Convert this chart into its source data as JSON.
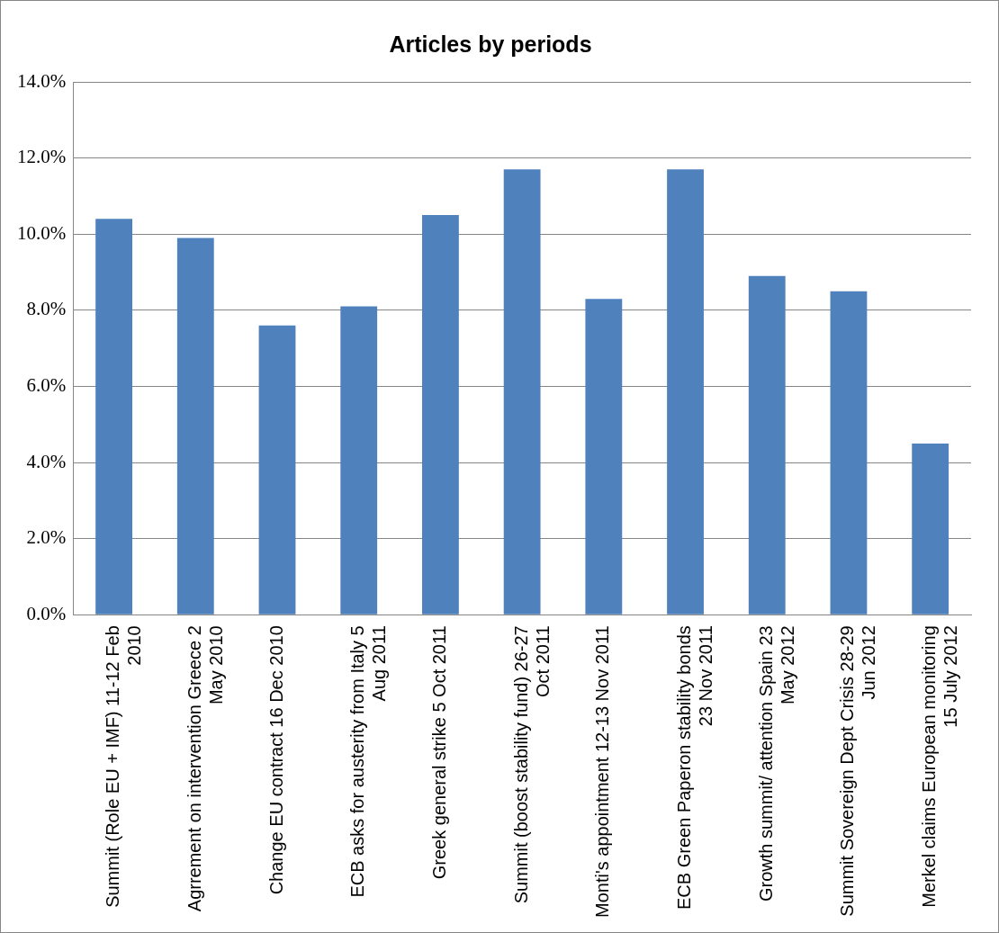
{
  "chart_data": {
    "type": "bar",
    "title": "Articles by periods",
    "categories": [
      "Summit (Role EU + IMF) 11-12 Feb 2010",
      "Agrrement on intervention Greece 2 May 2010",
      "Change EU contract 16 Dec 2010",
      "ECB asks for austerity from Italy 5 Aug 2011",
      "Greek general strike 5 Oct 2011",
      "Summit (boost stability fund) 26-27 Oct 2011",
      "Monti's appointment 12-13 Nov 2011",
      "ECB Green Paperon stability bonds 23 Nov 2011",
      "Growth summit/ attention Spain 23 May 2012",
      "Summit Sovereign Dept Crisis 28-29 Jun 2012",
      "Merkel claims European monitoring 15 July 2012"
    ],
    "values": [
      10.4,
      9.9,
      7.6,
      8.1,
      10.5,
      11.7,
      8.3,
      11.7,
      8.9,
      8.5,
      4.5
    ],
    "color": "#4f81bd",
    "ylim": [
      0,
      14
    ],
    "yticks": [
      {
        "value": 0,
        "label": "0.0%"
      },
      {
        "value": 2,
        "label": "2.0%"
      },
      {
        "value": 4,
        "label": "4.0%"
      },
      {
        "value": 6,
        "label": "6.0%"
      },
      {
        "value": 8,
        "label": "8.0%"
      },
      {
        "value": 10,
        "label": "10.0%"
      },
      {
        "value": 12,
        "label": "12.0%"
      },
      {
        "value": 14,
        "label": "14.0%"
      }
    ],
    "grid": "y",
    "legend": false
  }
}
